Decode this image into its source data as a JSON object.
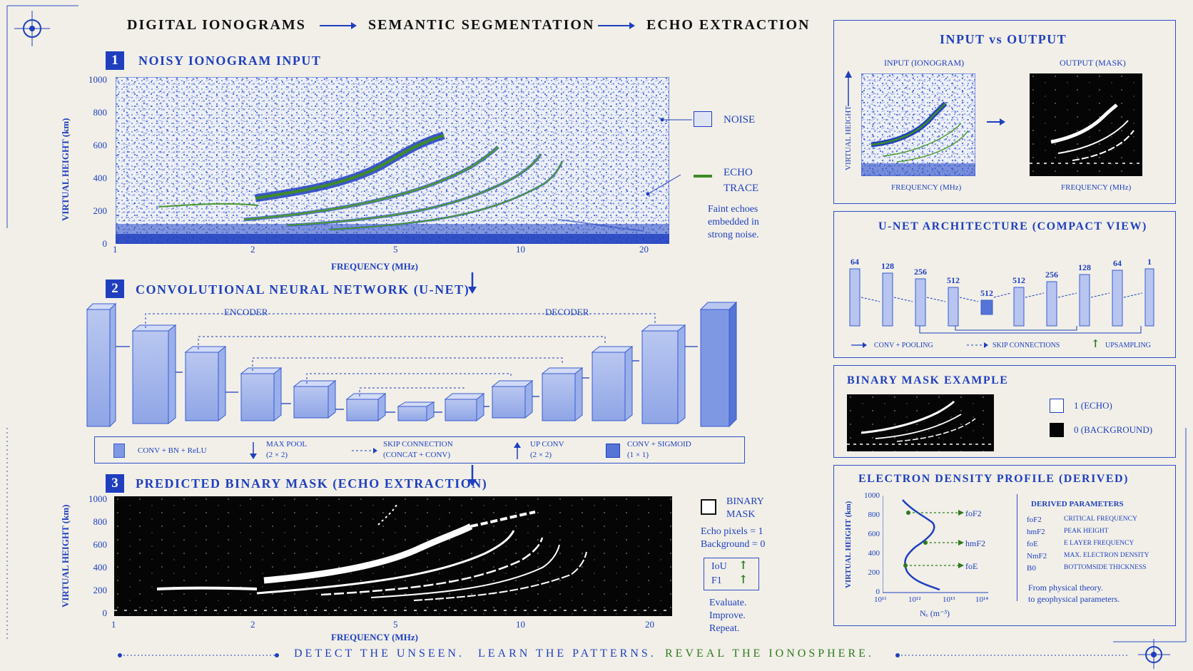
{
  "header": {
    "step1": "DIGITAL IONOGRAMS",
    "step2": "SEMANTIC SEGMENTATION",
    "step3": "ECHO EXTRACTION"
  },
  "section1": {
    "num": "1",
    "title": "NOISY IONOGRAM INPUT",
    "ylabel": "VIRTUAL HEIGHT (km)",
    "xlabel": "FREQUENCY (MHz)",
    "yticks": [
      "1000",
      "800",
      "600",
      "400",
      "200",
      "0"
    ],
    "xticks": [
      "1",
      "2",
      "5",
      "10",
      "20"
    ],
    "legend_noise": "NOISE",
    "legend_echo_1": "ECHO",
    "legend_echo_2": "TRACE",
    "note_1": "Faint echoes",
    "note_2": "embedded in",
    "note_3": "strong noise."
  },
  "section2": {
    "num": "2",
    "title": "CONVOLUTIONAL NEURAL NETWORK (U-NET)",
    "encoder": "ENCODER",
    "decoder": "DECODER",
    "legend": {
      "conv": "CONV + BN + ReLU",
      "pool_1": "MAX POOL",
      "pool_2": "(2 × 2)",
      "skip_1": "SKIP CONNECTION",
      "skip_2": "(CONCAT + CONV)",
      "up_1": "UP CONV",
      "up_2": "(2 × 2)",
      "sig_1": "CONV + SIGMOID",
      "sig_2": "(1 × 1)"
    }
  },
  "section3": {
    "num": "3",
    "title": "PREDICTED BINARY MASK (ECHO EXTRACTION)",
    "ylabel": "VIRTUAL HEIGHT (km)",
    "xlabel": "FREQUENCY (MHz)",
    "yticks": [
      "1000",
      "800",
      "600",
      "400",
      "200",
      "0"
    ],
    "xticks": [
      "1",
      "2",
      "5",
      "10",
      "20"
    ],
    "mask_1": "BINARY",
    "mask_2": "MASK",
    "echo_px": "Echo pixels = 1",
    "bg_px": "Background = 0",
    "iou": "IoU",
    "f1": "F1",
    "eval_1": "Evaluate.",
    "eval_2": "Improve.",
    "eval_3": "Repeat."
  },
  "right": {
    "io_title": "INPUT vs OUTPUT",
    "io_input": "INPUT (IONOGRAM)",
    "io_output": "OUTPUT (MASK)",
    "io_vh": "VIRTUAL HEIGHT",
    "io_freq": "FREQUENCY (MHz)",
    "unet_title": "U-NET ARCHITECTURE (COMPACT VIEW)",
    "unet_channels": [
      "64",
      "128",
      "256",
      "512",
      "512",
      "512",
      "256",
      "128",
      "64",
      "1"
    ],
    "unet_leg_conv": "CONV + POOLING",
    "unet_leg_skip": "SKIP CONNECTIONS",
    "unet_leg_up": "UPSAMPLING",
    "mask_title": "BINARY MASK EXAMPLE",
    "mask_one": "1 (ECHO)",
    "mask_zero": "0 (BACKGROUND)",
    "edp_title": "ELECTRON DENSITY PROFILE (DERIVED)",
    "edp_ylabel": "VIRTUAL HEIGHT (km)",
    "edp_xlabel": "Nₑ (m⁻³)",
    "edp_yticks": [
      "1000",
      "800",
      "600",
      "400",
      "200",
      "0"
    ],
    "edp_xticks": [
      "10¹¹",
      "10¹²",
      "10¹³",
      "10¹⁴"
    ],
    "edp_foF2": "foF2",
    "edp_hmF2": "hmF2",
    "edp_foE": "foE",
    "params_title": "DERIVED PARAMETERS",
    "params": [
      {
        "k": "foF2",
        "v": "CRITICAL FREQUENCY"
      },
      {
        "k": "hmF2",
        "v": "PEAK HEIGHT"
      },
      {
        "k": "foE",
        "v": "E LAYER FREQUENCY"
      },
      {
        "k": "NmF2",
        "v": "MAX. ELECTRON DENSITY"
      },
      {
        "k": "B0",
        "v": "BOTTOMSIDE THICKNESS"
      }
    ],
    "theory_1": "From physical theory.",
    "theory_2": "to geophysical parameters."
  },
  "footer": {
    "p1": "DETECT THE UNSEEN.",
    "p2": "LEARN THE PATTERNS.",
    "p3": "REVEAL THE IONOSPHERE."
  },
  "colors": {
    "accent": "#1f3fbf",
    "green": "#2f7a1d",
    "paper": "#f1efe8"
  }
}
